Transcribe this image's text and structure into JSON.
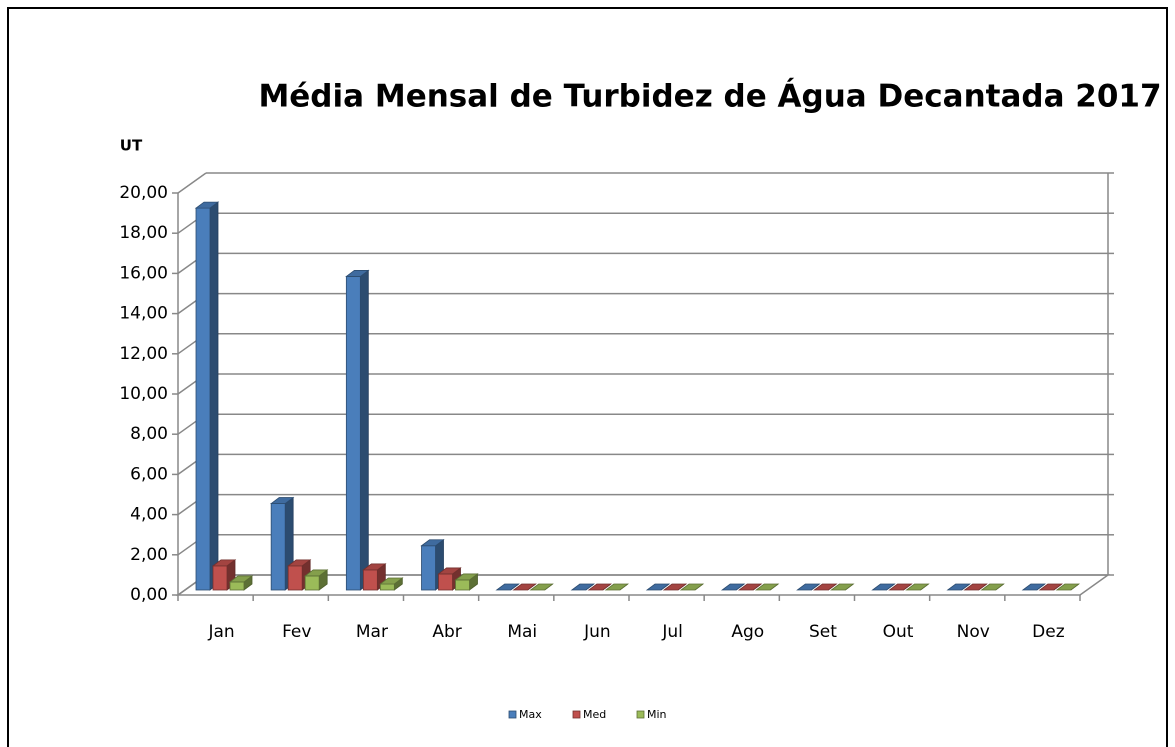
{
  "chart_data": {
    "type": "bar3d",
    "title": "Média Mensal de Turbidez de Água Decantada 2017",
    "y_label": "UT",
    "categories": [
      "Jan",
      "Fev",
      "Mar",
      "Abr",
      "Mai",
      "Jun",
      "Jul",
      "Ago",
      "Set",
      "Out",
      "Nov",
      "Dez"
    ],
    "series": [
      {
        "name": "Max",
        "color": "#4a7ebb",
        "values": [
          19.0,
          4.3,
          15.6,
          2.2,
          0,
          0,
          0,
          0,
          0,
          0,
          0,
          0
        ]
      },
      {
        "name": "Med",
        "color": "#c0504d",
        "values": [
          1.2,
          1.2,
          1.0,
          0.8,
          0,
          0,
          0,
          0,
          0,
          0,
          0,
          0
        ]
      },
      {
        "name": "Min",
        "color": "#9bbb59",
        "values": [
          0.4,
          0.7,
          0.3,
          0.5,
          0,
          0,
          0,
          0,
          0,
          0,
          0,
          0
        ]
      }
    ],
    "ylim": [
      0,
      20
    ],
    "yticks": [
      {
        "value": 0,
        "label": "0,00"
      },
      {
        "value": 2,
        "label": "2,00"
      },
      {
        "value": 4,
        "label": "4,00"
      },
      {
        "value": 6,
        "label": "6,00"
      },
      {
        "value": 8,
        "label": "8,00"
      },
      {
        "value": 10,
        "label": "10,00"
      },
      {
        "value": 12,
        "label": "12,00"
      },
      {
        "value": 14,
        "label": "14,00"
      },
      {
        "value": 16,
        "label": "16,00"
      },
      {
        "value": 18,
        "label": "18,00"
      },
      {
        "value": 20,
        "label": "20,00"
      }
    ],
    "grid": true,
    "legend": "bottom"
  }
}
